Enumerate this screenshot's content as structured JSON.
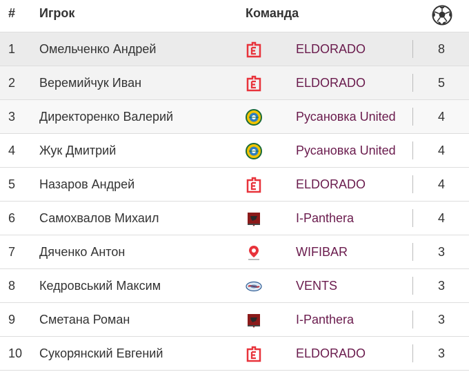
{
  "header": {
    "num": "#",
    "player": "Игрок",
    "team": "Команда",
    "goals_icon": "soccer-ball-icon"
  },
  "colors": {
    "team_text": "#6a1b4d",
    "eldorado_red": "#e8333b",
    "row_highlight": "#ebebeb"
  },
  "rows": [
    {
      "num": "1",
      "player": "Омельченко Андрей",
      "team": "ELDORADO",
      "logo": "eldorado-logo-icon",
      "goals": "8"
    },
    {
      "num": "2",
      "player": "Веремийчук Иван",
      "team": "ELDORADO",
      "logo": "eldorado-logo-icon",
      "goals": "5"
    },
    {
      "num": "3",
      "player": "Директоренко Валерий",
      "team": "Русановка United",
      "logo": "rusanovka-logo-icon",
      "goals": "4"
    },
    {
      "num": "4",
      "player": "Жук Дмитрий",
      "team": "Русановка United",
      "logo": "rusanovka-logo-icon",
      "goals": "4"
    },
    {
      "num": "5",
      "player": "Назаров Андрей",
      "team": "ELDORADO",
      "logo": "eldorado-logo-icon",
      "goals": "4"
    },
    {
      "num": "6",
      "player": "Самохвалов Михаил",
      "team": "I-Panthera",
      "logo": "ipanthera-logo-icon",
      "goals": "4"
    },
    {
      "num": "7",
      "player": "Дяченко Антон",
      "team": "WIFIBAR",
      "logo": "wifibar-logo-icon",
      "goals": "3"
    },
    {
      "num": "8",
      "player": "Кедровський Максим",
      "team": "VENTS",
      "logo": "vents-logo-icon",
      "goals": "3"
    },
    {
      "num": "9",
      "player": "Сметана Роман",
      "team": "I-Panthera",
      "logo": "ipanthera-logo-icon",
      "goals": "3"
    },
    {
      "num": "10",
      "player": "Сукорянский Евгений",
      "team": "ELDORADO",
      "logo": "eldorado-logo-icon",
      "goals": "3"
    }
  ]
}
